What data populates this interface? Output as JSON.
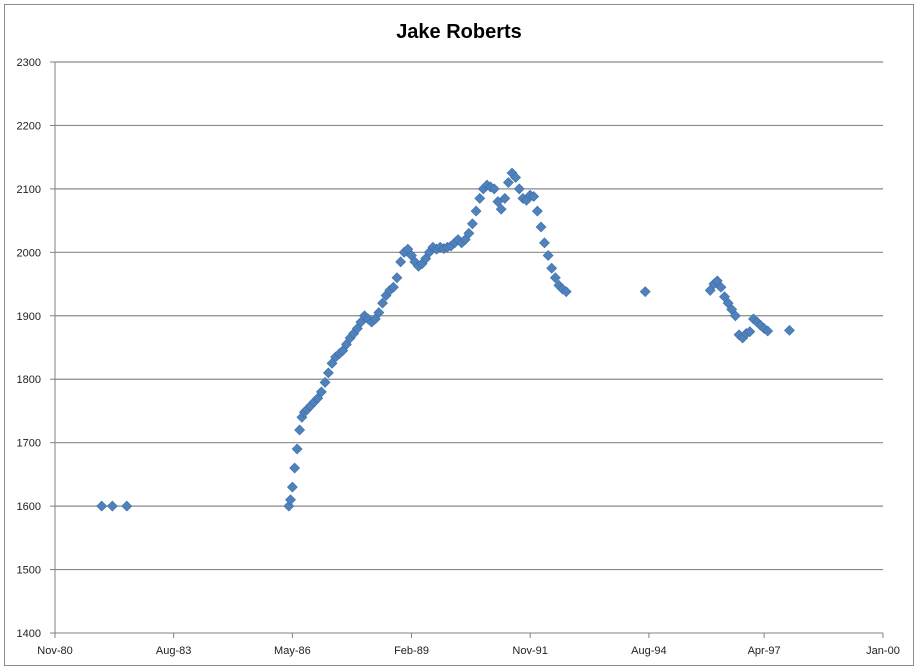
{
  "chart_data": {
    "type": "scatter",
    "title": "Jake Roberts",
    "xlabel": "",
    "ylabel": "",
    "ylim": [
      1400,
      2300
    ],
    "yticks": [
      1400,
      1500,
      1600,
      1700,
      1800,
      1900,
      2000,
      2100,
      2200,
      2300
    ],
    "xlim": [
      "1980-11-01",
      "2000-01-01"
    ],
    "xticks": [
      "Nov-80",
      "Aug-83",
      "May-86",
      "Feb-89",
      "Nov-91",
      "Aug-94",
      "Apr-97",
      "Jan-00"
    ],
    "xtick_dates": [
      "1980-11-01",
      "1983-08-01",
      "1986-05-01",
      "1989-02-01",
      "1991-11-01",
      "1994-08-01",
      "1997-04-01",
      "2000-01-01"
    ],
    "grid": true,
    "legend": "none",
    "marker_color": "#4f81bd",
    "points": [
      [
        "1981-12-01",
        1600
      ],
      [
        "1982-03-01",
        1600
      ],
      [
        "1982-07-01",
        1600
      ],
      [
        "1986-04-01",
        1600
      ],
      [
        "1986-04-15",
        1610
      ],
      [
        "1986-05-01",
        1630
      ],
      [
        "1986-05-20",
        1660
      ],
      [
        "1986-06-10",
        1690
      ],
      [
        "1986-07-01",
        1720
      ],
      [
        "1986-07-20",
        1740
      ],
      [
        "1986-08-10",
        1748
      ],
      [
        "1986-09-01",
        1752
      ],
      [
        "1986-10-01",
        1758
      ],
      [
        "1986-11-01",
        1764
      ],
      [
        "1986-12-01",
        1770
      ],
      [
        "1987-01-01",
        1780
      ],
      [
        "1987-02-01",
        1795
      ],
      [
        "1987-03-01",
        1810
      ],
      [
        "1987-04-01",
        1825
      ],
      [
        "1987-05-01",
        1835
      ],
      [
        "1987-06-01",
        1840
      ],
      [
        "1987-07-01",
        1845
      ],
      [
        "1987-08-01",
        1855
      ],
      [
        "1987-09-01",
        1865
      ],
      [
        "1987-10-01",
        1872
      ],
      [
        "1987-11-01",
        1880
      ],
      [
        "1987-12-01",
        1890
      ],
      [
        "1988-01-01",
        1900
      ],
      [
        "1988-02-01",
        1895
      ],
      [
        "1988-03-01",
        1890
      ],
      [
        "1988-04-01",
        1895
      ],
      [
        "1988-05-01",
        1905
      ],
      [
        "1988-06-01",
        1920
      ],
      [
        "1988-07-01",
        1932
      ],
      [
        "1988-08-01",
        1940
      ],
      [
        "1988-09-01",
        1945
      ],
      [
        "1988-10-01",
        1960
      ],
      [
        "1988-11-01",
        1985
      ],
      [
        "1988-12-01",
        2000
      ],
      [
        "1989-01-01",
        2005
      ],
      [
        "1989-02-01",
        1995
      ],
      [
        "1989-03-01",
        1985
      ],
      [
        "1989-04-01",
        1978
      ],
      [
        "1989-05-01",
        1982
      ],
      [
        "1989-06-01",
        1990
      ],
      [
        "1989-07-01",
        2000
      ],
      [
        "1989-08-01",
        2008
      ],
      [
        "1989-09-01",
        2005
      ],
      [
        "1989-10-01",
        2008
      ],
      [
        "1989-11-01",
        2006
      ],
      [
        "1989-12-01",
        2008
      ],
      [
        "1990-01-01",
        2010
      ],
      [
        "1990-02-01",
        2015
      ],
      [
        "1990-03-01",
        2020
      ],
      [
        "1990-04-01",
        2015
      ],
      [
        "1990-05-01",
        2020
      ],
      [
        "1990-06-01",
        2030
      ],
      [
        "1990-07-01",
        2045
      ],
      [
        "1990-08-01",
        2065
      ],
      [
        "1990-09-01",
        2085
      ],
      [
        "1990-10-01",
        2100
      ],
      [
        "1990-11-01",
        2106
      ],
      [
        "1990-12-01",
        2103
      ],
      [
        "1991-01-01",
        2100
      ],
      [
        "1991-02-01",
        2080
      ],
      [
        "1991-03-01",
        2068
      ],
      [
        "1991-04-01",
        2085
      ],
      [
        "1991-05-01",
        2110
      ],
      [
        "1991-06-01",
        2125
      ],
      [
        "1991-07-01",
        2118
      ],
      [
        "1991-08-01",
        2100
      ],
      [
        "1991-09-01",
        2085
      ],
      [
        "1991-10-01",
        2082
      ],
      [
        "1991-11-01",
        2090
      ],
      [
        "1991-12-01",
        2088
      ],
      [
        "1992-01-01",
        2065
      ],
      [
        "1992-02-01",
        2040
      ],
      [
        "1992-03-01",
        2015
      ],
      [
        "1992-04-01",
        1995
      ],
      [
        "1992-05-01",
        1975
      ],
      [
        "1992-06-01",
        1960
      ],
      [
        "1992-07-01",
        1948
      ],
      [
        "1992-08-01",
        1942
      ],
      [
        "1992-09-01",
        1938
      ],
      [
        "1994-07-01",
        1938
      ],
      [
        "1996-01-01",
        1940
      ],
      [
        "1996-02-01",
        1950
      ],
      [
        "1996-03-01",
        1955
      ],
      [
        "1996-04-01",
        1945
      ],
      [
        "1996-05-01",
        1930
      ],
      [
        "1996-06-01",
        1920
      ],
      [
        "1996-07-01",
        1910
      ],
      [
        "1996-08-01",
        1900
      ],
      [
        "1996-09-01",
        1870
      ],
      [
        "1996-10-01",
        1865
      ],
      [
        "1996-11-01",
        1872
      ],
      [
        "1996-12-01",
        1875
      ],
      [
        "1997-01-01",
        1895
      ],
      [
        "1997-02-01",
        1890
      ],
      [
        "1997-03-01",
        1885
      ],
      [
        "1997-04-01",
        1880
      ],
      [
        "1997-05-01",
        1876
      ],
      [
        "1997-11-01",
        1877
      ]
    ]
  }
}
